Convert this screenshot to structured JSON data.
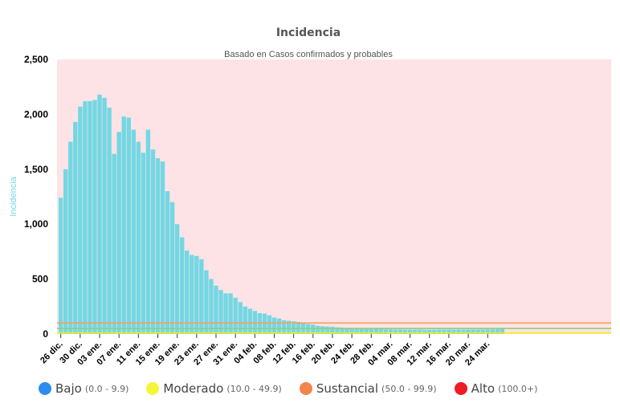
{
  "chart_data": {
    "type": "bar",
    "title": "Incidencia",
    "subtitle": "Basado en Casos confirmados y probables",
    "ylabel": "Incidencia",
    "ylim": [
      0,
      2500
    ],
    "y_ticks": [
      "0",
      "500",
      "1,000",
      "1,500",
      "2,000",
      "2,500"
    ],
    "x_tick_labels": [
      "26 dic.",
      "30 dic.",
      "03 ene.",
      "07 ene.",
      "11 ene.",
      "15 ene.",
      "19 ene.",
      "23 ene.",
      "27 ene.",
      "31 ene.",
      "04 feb.",
      "08 feb.",
      "12 feb.",
      "16 feb.",
      "20 feb.",
      "24 feb.",
      "28 feb.",
      "04 mar.",
      "08 mar.",
      "12 mar.",
      "16 mar.",
      "20 mar.",
      "24 mar."
    ],
    "tick_every_n_days": 4,
    "series_color": "#74d7e3",
    "background_color": "#fde3e6",
    "threshold_lines": [
      {
        "value": 10,
        "color": "#f5f000"
      },
      {
        "value": 50,
        "color": "#90d070"
      },
      {
        "value": 100,
        "color": "#f5a05a"
      }
    ],
    "values": [
      1240,
      1500,
      1750,
      1930,
      2070,
      2120,
      2120,
      2130,
      2180,
      2150,
      2060,
      1640,
      1840,
      1980,
      1970,
      1860,
      1750,
      1650,
      1860,
      1680,
      1600,
      1570,
      1300,
      1200,
      1000,
      880,
      760,
      720,
      710,
      680,
      580,
      500,
      440,
      400,
      370,
      370,
      330,
      290,
      250,
      230,
      210,
      190,
      185,
      170,
      150,
      140,
      125,
      120,
      115,
      110,
      100,
      90,
      85,
      75,
      70,
      68,
      65,
      60,
      57,
      55,
      52,
      50,
      48,
      46,
      45,
      44,
      43,
      42,
      42,
      41,
      41,
      40,
      40,
      40,
      40,
      39,
      39,
      39,
      40,
      40,
      40,
      40,
      40,
      40,
      40,
      41,
      41,
      41,
      42,
      42,
      43,
      44
    ]
  },
  "legend": [
    {
      "name": "Bajo",
      "range": "(0.0 - 9.9)",
      "color": "#2e8cf0"
    },
    {
      "name": "Moderado",
      "range": "(10.0 - 49.9)",
      "color": "#f5f53a"
    },
    {
      "name": "Sustancial",
      "range": "(50.0 - 99.9)",
      "color": "#f5844a"
    },
    {
      "name": "Alto",
      "range": "(100.0+)",
      "color": "#ee1c24"
    }
  ]
}
